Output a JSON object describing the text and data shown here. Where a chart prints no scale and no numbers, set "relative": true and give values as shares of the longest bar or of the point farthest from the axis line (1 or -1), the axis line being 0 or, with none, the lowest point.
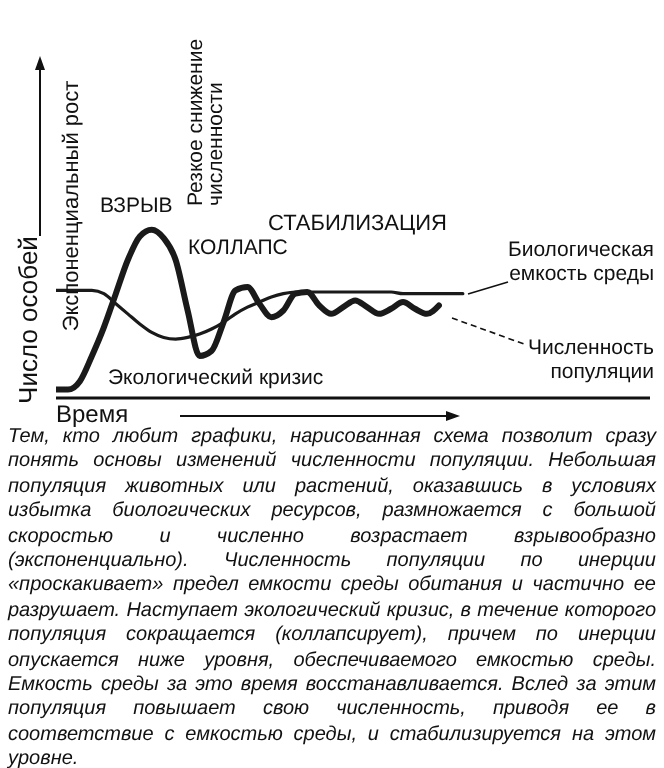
{
  "chart_data": {
    "type": "line",
    "relative": true,
    "xlabel": "Время",
    "ylabel": "Число особей",
    "categories": [
      null,
      null,
      null,
      null,
      null,
      null,
      null,
      null,
      null,
      null,
      null,
      null,
      null,
      null,
      null,
      null,
      null,
      null,
      null,
      null,
      null,
      null,
      null,
      null,
      null,
      null,
      null,
      null,
      null,
      null,
      null,
      null,
      null,
      null,
      null
    ],
    "series": [
      {
        "name": "Биологическая емкость среды",
        "color": "#1a1a1a",
        "values": [
          0.64,
          0.64,
          0.64,
          0.64,
          0.62,
          0.56,
          0.5,
          0.44,
          0.39,
          0.36,
          0.35,
          0.36,
          0.38,
          0.41,
          0.45,
          0.5,
          0.54,
          0.57,
          0.6,
          0.62,
          0.63,
          0.63,
          0.63,
          0.63,
          0.63,
          0.63,
          0.63,
          0.63,
          0.63,
          0.62,
          0.62,
          0.62,
          0.62,
          0.62,
          0.62
        ]
      },
      {
        "name": "Численность популяции",
        "color": "#1a1a1a",
        "values": [
          0.05,
          0.05,
          0.1,
          0.25,
          0.42,
          0.62,
          0.82,
          0.96,
          1.0,
          0.95,
          0.82,
          0.52,
          0.25,
          0.28,
          0.45,
          0.64,
          0.66,
          0.56,
          0.48,
          0.52,
          0.62,
          0.63,
          0.55,
          0.5,
          0.54,
          0.58,
          0.54,
          0.5,
          0.53,
          0.57,
          0.53,
          0.5,
          0.55,
          null,
          null
        ]
      }
    ],
    "legend": false,
    "grid": false,
    "marker": "none",
    "line_style": "solid",
    "annotations": [
      "Экспоненциальный рост",
      "ВЗРЫВ",
      "Резкое снижение численности",
      "КОЛЛАПС",
      "СТАБИЛИЗАЦИЯ",
      "Экологический кризис",
      "Тем, кто любит графики, нарисованная схема позволит сразу понять основы изменений численности популяции. Небольшая популяция животных или растений, оказавшись в условиях избытка биологических ресурсов, размножается с большой скоростью и численно возрастает взрывообразно (экспоненциально). Численность популяции по инерции «проскакивает» предел емкости среды обитания и частично ее разрушает. Наступает экологический кризис, в течение которого популяция сокращается (коллапсирует), причем по инерции опускается ниже уровня, обеспечиваемого емкостью среды. Емкость среды за это время восстанавливается. Вслед за этим популяция повышает свою численность, приводя ее в соответствие с емкостью среды, и стабилизируется на этом уровне."
    ]
  }
}
